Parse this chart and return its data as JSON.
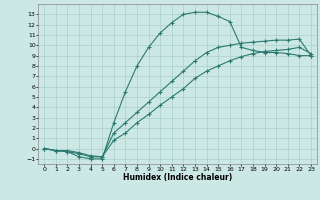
{
  "xlabel": "Humidex (Indice chaleur)",
  "bg_color": "#cce8e5",
  "grid_color": "#aacfcc",
  "line_color": "#2a7a6f",
  "xlim": [
    -0.5,
    23.5
  ],
  "ylim": [
    -1.5,
    14.0
  ],
  "xticks": [
    0,
    1,
    2,
    3,
    4,
    5,
    6,
    7,
    8,
    9,
    10,
    11,
    12,
    13,
    14,
    15,
    16,
    17,
    18,
    19,
    20,
    21,
    22,
    23
  ],
  "yticks": [
    -1,
    0,
    1,
    2,
    3,
    4,
    5,
    6,
    7,
    8,
    9,
    10,
    11,
    12,
    13
  ],
  "line1_x": [
    0,
    1,
    2,
    3,
    4,
    5,
    6,
    7,
    8,
    9,
    10,
    11,
    12,
    13,
    14,
    15,
    16,
    17,
    18,
    19,
    20,
    21,
    22,
    23
  ],
  "line1_y": [
    0,
    -0.2,
    -0.3,
    -0.8,
    -1.0,
    -1.0,
    2.5,
    5.5,
    8.0,
    9.8,
    11.2,
    12.2,
    13.0,
    13.2,
    13.2,
    12.8,
    12.3,
    9.8,
    9.5,
    9.3,
    9.3,
    9.2,
    9.0,
    9.0
  ],
  "line2_x": [
    0,
    1,
    2,
    3,
    4,
    5,
    6,
    7,
    8,
    9,
    10,
    11,
    12,
    13,
    14,
    15,
    16,
    17,
    18,
    19,
    20,
    21,
    22,
    23
  ],
  "line2_y": [
    0,
    -0.2,
    -0.3,
    -0.5,
    -0.8,
    -0.8,
    1.5,
    2.5,
    3.5,
    4.5,
    5.5,
    6.5,
    7.5,
    8.5,
    9.3,
    9.8,
    10.0,
    10.2,
    10.3,
    10.4,
    10.5,
    10.5,
    10.6,
    9.0
  ],
  "line3_x": [
    0,
    1,
    2,
    3,
    4,
    5,
    6,
    7,
    8,
    9,
    10,
    11,
    12,
    13,
    14,
    15,
    16,
    17,
    18,
    19,
    20,
    21,
    22,
    23
  ],
  "line3_y": [
    0,
    -0.2,
    -0.2,
    -0.4,
    -0.7,
    -0.8,
    0.8,
    1.5,
    2.5,
    3.3,
    4.2,
    5.0,
    5.8,
    6.8,
    7.5,
    8.0,
    8.5,
    8.9,
    9.2,
    9.4,
    9.5,
    9.6,
    9.8,
    9.2
  ]
}
